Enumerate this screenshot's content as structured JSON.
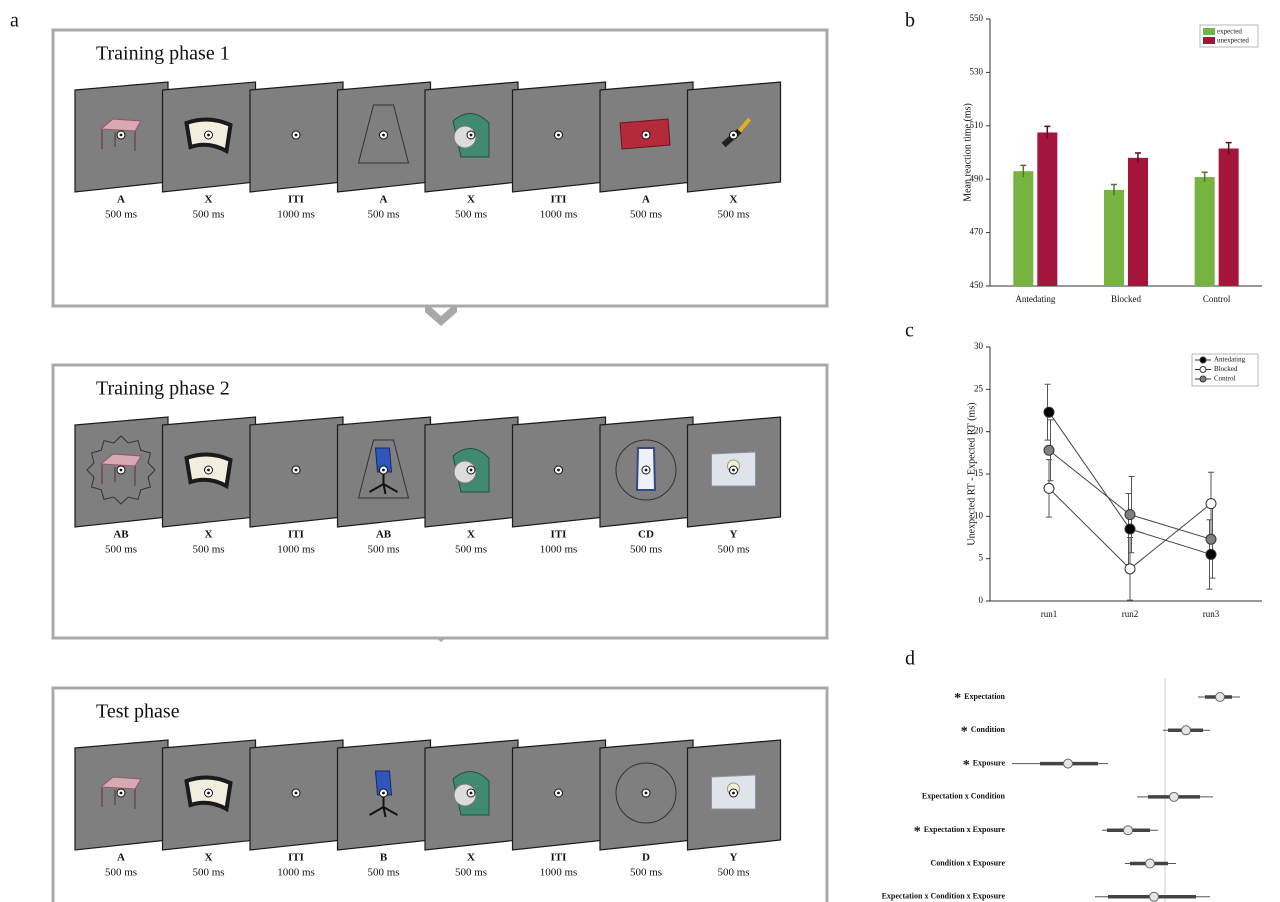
{
  "panel_a": {
    "label": "a",
    "phases": [
      {
        "title": "Training phase 1",
        "frames": [
          {
            "label": "A",
            "duration": "500 ms"
          },
          {
            "label": "X",
            "duration": "500 ms"
          },
          {
            "label": "ITI",
            "duration": "1000 ms"
          },
          {
            "label": "A",
            "duration": "500 ms"
          },
          {
            "label": "X",
            "duration": "500 ms"
          },
          {
            "label": "ITI",
            "duration": "1000 ms"
          },
          {
            "label": "A",
            "duration": "500 ms"
          },
          {
            "label": "X",
            "duration": "500 ms"
          }
        ]
      },
      {
        "title": "Training phase 2",
        "frames": [
          {
            "label": "AB",
            "duration": "500 ms"
          },
          {
            "label": "X",
            "duration": "500 ms"
          },
          {
            "label": "ITI",
            "duration": "1000 ms"
          },
          {
            "label": "AB",
            "duration": "500 ms"
          },
          {
            "label": "X",
            "duration": "500 ms"
          },
          {
            "label": "ITI",
            "duration": "1000 ms"
          },
          {
            "label": "CD",
            "duration": "500 ms"
          },
          {
            "label": "Y",
            "duration": "500 ms"
          }
        ]
      },
      {
        "title": "Test phase",
        "frames": [
          {
            "label": "A",
            "duration": "500 ms"
          },
          {
            "label": "X",
            "duration": "500 ms"
          },
          {
            "label": "ITI",
            "duration": "1000 ms"
          },
          {
            "label": "B",
            "duration": "500 ms"
          },
          {
            "label": "X",
            "duration": "500 ms"
          },
          {
            "label": "ITI",
            "duration": "1000 ms"
          },
          {
            "label": "D",
            "duration": "500 ms"
          },
          {
            "label": "Y",
            "duration": "500 ms"
          }
        ]
      }
    ]
  },
  "chart_data": [
    {
      "type": "bar",
      "panel_label": "b",
      "y_label": "Mean reaction time (ms)",
      "categories": [
        "Antedating",
        "Blocked",
        "Control"
      ],
      "series": [
        {
          "name": "expected",
          "color": "#77b341",
          "values": [
            493,
            486,
            490.8
          ],
          "errors": [
            2.2,
            2,
            1.8
          ]
        },
        {
          "name": "unexpected",
          "color": "#a3153a",
          "values": [
            507.5,
            498,
            501.5
          ],
          "errors": [
            2.3,
            1.8,
            2.2
          ]
        }
      ],
      "ylim": [
        450,
        550
      ],
      "yticks": [
        450,
        470,
        490,
        510,
        530,
        550
      ],
      "legend": "upper right"
    },
    {
      "type": "line",
      "panel_label": "c",
      "y_label": "Unexpected RT - Expected RT (ms)",
      "categories": [
        "run1",
        "run2",
        "run3"
      ],
      "series": [
        {
          "name": "Antedating",
          "color": "#000000",
          "values": [
            22.3,
            8.5,
            5.5
          ],
          "errors": [
            3.3,
            4.2,
            4.1
          ]
        },
        {
          "name": "Blocked",
          "color": "#ffffff",
          "values": [
            13.3,
            3.8,
            11.5
          ],
          "errors": [
            3.4,
            3.7,
            3.7
          ]
        },
        {
          "name": "Control",
          "color": "#808080",
          "values": [
            17.8,
            10.2,
            7.3
          ],
          "errors": [
            3.6,
            4.5,
            4.6
          ]
        }
      ],
      "ylim": [
        0,
        30
      ],
      "yticks": [
        0,
        5,
        10,
        15,
        20,
        25,
        30
      ],
      "legend": "upper right"
    },
    {
      "type": "forest",
      "panel_label": "d",
      "categories": [
        "Expectation",
        "Condition",
        "Exposure",
        "Expectation x Condition",
        "Expectation x Exposure",
        "Condition x Exposure",
        "Expectation x Condition x Exposure"
      ],
      "markers": [
        "*",
        "*",
        "*",
        null,
        "*",
        null,
        null
      ],
      "values": [
        5.5,
        2.1,
        -9.7,
        0.9,
        -3.7,
        -1.5,
        -1.1
      ],
      "ci_inner": [
        [
          4.0,
          6.7
        ],
        [
          0.3,
          3.8
        ],
        [
          -12.5,
          -6.7
        ],
        [
          -1.7,
          3.5
        ],
        [
          -5.8,
          -1.5
        ],
        [
          -3.5,
          0.3
        ],
        [
          -5.7,
          3.1
        ]
      ],
      "ci_outer": [
        [
          3.3,
          7.5
        ],
        [
          -0.2,
          4.5
        ],
        [
          -15.3,
          -5.7
        ],
        [
          -2.8,
          4.8
        ],
        [
          -6.3,
          -0.7
        ],
        [
          -4.0,
          1.1
        ],
        [
          -7.0,
          4.5
        ]
      ],
      "xlim": [
        -16,
        11
      ],
      "reference_line": 0
    }
  ]
}
